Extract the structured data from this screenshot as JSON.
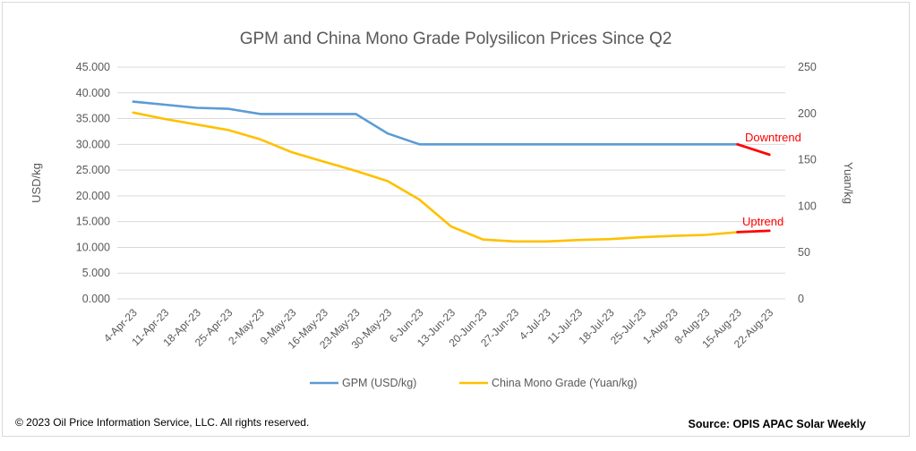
{
  "chart_data": {
    "type": "line",
    "title": "GPM and China Mono Grade Polysilicon Prices Since Q2",
    "ylabel_left": "USD/kg",
    "ylabel_right": "Yuan/kg",
    "ylim_left": [
      0,
      45
    ],
    "ylim_right": [
      0,
      250
    ],
    "yticks_left": [
      "0.000",
      "5.000",
      "10.000",
      "15.000",
      "20.000",
      "25.000",
      "30.000",
      "35.000",
      "40.000",
      "45.000"
    ],
    "yticks_right": [
      "0",
      "50",
      "100",
      "150",
      "200",
      "250"
    ],
    "categories": [
      "4-Apr-23",
      "11-Apr-23",
      "18-Apr-23",
      "25-Apr-23",
      "2-May-23",
      "9-May-23",
      "16-May-23",
      "23-May-23",
      "30-May-23",
      "6-Jun-23",
      "13-Jun-23",
      "20-Jun-23",
      "27-Jun-23",
      "4-Jul-23",
      "11-Jul-23",
      "18-Jul-23",
      "25-Jul-23",
      "1-Aug-23",
      "8-Aug-23",
      "15-Aug-23",
      "22-Aug-23"
    ],
    "grid": true,
    "legend": "bottom",
    "series": [
      {
        "name": "GPM (USD/kg)",
        "axis": "left",
        "color": "#5b9bd5",
        "values": [
          38.3,
          37.7,
          37.1,
          36.9,
          35.9,
          35.9,
          35.9,
          35.9,
          32.1,
          30.0,
          30.0,
          30.0,
          30.0,
          30.0,
          30.0,
          30.0,
          30.0,
          30.0,
          30.0,
          30.0,
          null
        ]
      },
      {
        "name": "China Mono Grade (Yuan/kg)",
        "axis": "right",
        "color": "#ffc000",
        "values": [
          201,
          194,
          188,
          182,
          172,
          158,
          148,
          138,
          127,
          107,
          78,
          64,
          62,
          62,
          63.5,
          64.5,
          66.5,
          68,
          69,
          72,
          null
        ]
      }
    ],
    "trend_segments": [
      {
        "series": 0,
        "from": "15-Aug-23",
        "to": "22-Aug-23",
        "end_value": 28.0,
        "color": "#ff0000"
      },
      {
        "series": 1,
        "from": "15-Aug-23",
        "to": "22-Aug-23",
        "end_value": 73.5,
        "color": "#ff0000"
      }
    ],
    "annotations": [
      {
        "text": "Downtrend",
        "color": "#ff0000"
      },
      {
        "text": "Uptrend",
        "color": "#ff0000"
      }
    ]
  },
  "footer": {
    "copyright": "© 2023 Oil Price Information Service, LLC. All rights reserved.",
    "source": "Source: OPIS APAC Solar Weekly"
  }
}
